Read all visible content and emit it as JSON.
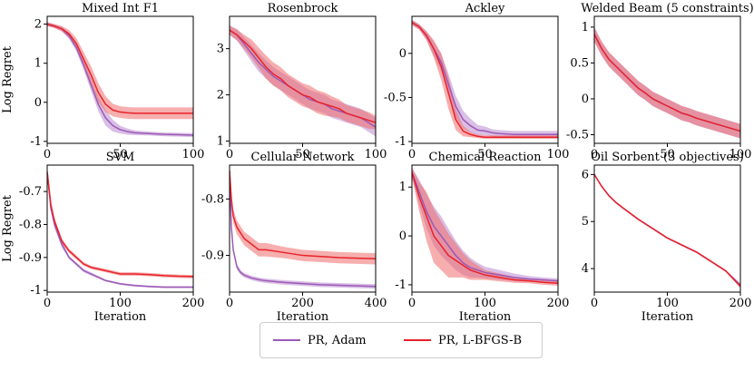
{
  "figure": {
    "legend_placement": "bottom-center"
  },
  "series_styles": [
    {
      "name": "PR, Adam",
      "color": "#9b59b6",
      "band": "#b98ad0"
    },
    {
      "name": "PR, L-BFGS-B",
      "color": "#e8222a",
      "band": "#ee6b6b"
    }
  ],
  "chart_data": [
    {
      "type": "line",
      "title": "Mixed Int F1",
      "xlabel": "",
      "ylabel": "Log Regret",
      "xlim": [
        0,
        100
      ],
      "ylim": [
        -1.05,
        2.2
      ],
      "xticks": [
        0,
        50,
        100
      ],
      "yticks": [
        -1,
        0,
        1,
        2
      ],
      "series": [
        {
          "name": "PR, Adam",
          "x": [
            0,
            5,
            10,
            15,
            20,
            25,
            30,
            35,
            40,
            45,
            50,
            55,
            60,
            70,
            80,
            90,
            100
          ],
          "y": [
            2.0,
            1.95,
            1.88,
            1.7,
            1.4,
            0.95,
            0.45,
            -0.05,
            -0.4,
            -0.6,
            -0.7,
            -0.75,
            -0.78,
            -0.8,
            -0.82,
            -0.83,
            -0.84
          ],
          "band": [
            0.05,
            0.05,
            0.06,
            0.08,
            0.1,
            0.12,
            0.15,
            0.18,
            0.2,
            0.15,
            0.1,
            0.08,
            0.06,
            0.05,
            0.05,
            0.05,
            0.05
          ]
        },
        {
          "name": "PR, L-BFGS-B",
          "x": [
            0,
            5,
            10,
            15,
            20,
            25,
            30,
            35,
            40,
            45,
            50,
            55,
            60,
            70,
            80,
            90,
            100
          ],
          "y": [
            2.0,
            1.95,
            1.88,
            1.75,
            1.5,
            1.1,
            0.7,
            0.25,
            -0.05,
            -0.2,
            -0.25,
            -0.27,
            -0.28,
            -0.28,
            -0.28,
            -0.28,
            -0.28
          ],
          "band": [
            0.05,
            0.05,
            0.07,
            0.1,
            0.14,
            0.18,
            0.22,
            0.24,
            0.2,
            0.16,
            0.15,
            0.15,
            0.15,
            0.15,
            0.15,
            0.15,
            0.15
          ]
        }
      ]
    },
    {
      "type": "line",
      "title": "Rosenbrock",
      "xlabel": "",
      "ylabel": "",
      "xlim": [
        0,
        100
      ],
      "ylim": [
        0.95,
        3.7
      ],
      "xticks": [
        0,
        50,
        100
      ],
      "yticks": [
        1,
        2,
        3
      ],
      "series": [
        {
          "name": "PR, Adam",
          "x": [
            0,
            5,
            10,
            15,
            20,
            25,
            30,
            35,
            40,
            45,
            50,
            55,
            60,
            65,
            70,
            75,
            80,
            85,
            90,
            95,
            100
          ],
          "y": [
            3.4,
            3.3,
            3.1,
            2.9,
            2.7,
            2.55,
            2.4,
            2.3,
            2.2,
            2.1,
            2.0,
            1.9,
            1.85,
            1.8,
            1.7,
            1.65,
            1.6,
            1.55,
            1.5,
            1.4,
            1.3
          ],
          "band": [
            0.1,
            0.12,
            0.15,
            0.18,
            0.2,
            0.2,
            0.2,
            0.2,
            0.2,
            0.2,
            0.2,
            0.2,
            0.2,
            0.2,
            0.2,
            0.2,
            0.2,
            0.2,
            0.2,
            0.2,
            0.2
          ]
        },
        {
          "name": "PR, L-BFGS-B",
          "x": [
            0,
            5,
            10,
            15,
            20,
            25,
            30,
            35,
            40,
            45,
            50,
            55,
            60,
            65,
            70,
            75,
            80,
            85,
            90,
            95,
            100
          ],
          "y": [
            3.4,
            3.3,
            3.15,
            3.0,
            2.8,
            2.6,
            2.45,
            2.35,
            2.2,
            2.1,
            2.0,
            1.95,
            1.85,
            1.8,
            1.75,
            1.7,
            1.6,
            1.55,
            1.5,
            1.45,
            1.4
          ],
          "band": [
            0.1,
            0.12,
            0.15,
            0.2,
            0.22,
            0.25,
            0.25,
            0.25,
            0.25,
            0.25,
            0.25,
            0.25,
            0.25,
            0.25,
            0.22,
            0.2,
            0.18,
            0.18,
            0.18,
            0.18,
            0.15
          ]
        }
      ]
    },
    {
      "type": "line",
      "title": "Ackley",
      "xlabel": "",
      "ylabel": "",
      "xlim": [
        0,
        100
      ],
      "ylim": [
        -1.02,
        0.42
      ],
      "xticks": [
        0,
        50,
        100
      ],
      "yticks": [
        -1.0,
        -0.5,
        0.0
      ],
      "series": [
        {
          "name": "PR, Adam",
          "x": [
            0,
            5,
            10,
            15,
            20,
            25,
            30,
            35,
            40,
            45,
            50,
            55,
            60,
            70,
            80,
            90,
            100
          ],
          "y": [
            0.35,
            0.3,
            0.2,
            0.05,
            -0.1,
            -0.35,
            -0.6,
            -0.75,
            -0.82,
            -0.87,
            -0.88,
            -0.9,
            -0.91,
            -0.92,
            -0.92,
            -0.92,
            -0.92
          ],
          "band": [
            0.03,
            0.03,
            0.05,
            0.08,
            0.1,
            0.12,
            0.12,
            0.1,
            0.08,
            0.06,
            0.05,
            0.04,
            0.04,
            0.04,
            0.04,
            0.04,
            0.04
          ]
        },
        {
          "name": "PR, L-BFGS-B",
          "x": [
            0,
            5,
            10,
            15,
            20,
            25,
            30,
            35,
            40,
            45,
            50,
            55,
            60,
            70,
            80,
            90,
            100
          ],
          "y": [
            0.35,
            0.3,
            0.2,
            0.05,
            -0.15,
            -0.45,
            -0.75,
            -0.88,
            -0.92,
            -0.94,
            -0.95,
            -0.95,
            -0.95,
            -0.95,
            -0.95,
            -0.95,
            -0.95
          ],
          "band": [
            0.03,
            0.03,
            0.05,
            0.1,
            0.15,
            0.18,
            0.12,
            0.06,
            0.03,
            0.02,
            0.02,
            0.02,
            0.02,
            0.02,
            0.02,
            0.02,
            0.02
          ]
        }
      ]
    },
    {
      "type": "line",
      "title": "Welded Beam (5 constraints)",
      "xlabel": "",
      "ylabel": "",
      "xlim": [
        0,
        100
      ],
      "ylim": [
        -0.62,
        1.15
      ],
      "xticks": [
        0,
        50,
        100
      ],
      "yticks": [
        -0.5,
        0.0,
        0.5,
        1.0
      ],
      "series": [
        {
          "name": "PR, Adam",
          "x": [
            0,
            5,
            10,
            15,
            20,
            25,
            30,
            35,
            40,
            45,
            50,
            55,
            60,
            65,
            70,
            75,
            80,
            85,
            90,
            95,
            100
          ],
          "y": [
            0.9,
            0.7,
            0.55,
            0.45,
            0.35,
            0.25,
            0.15,
            0.08,
            0.0,
            -0.05,
            -0.1,
            -0.15,
            -0.2,
            -0.23,
            -0.27,
            -0.3,
            -0.33,
            -0.36,
            -0.39,
            -0.42,
            -0.45
          ],
          "band": [
            0.1,
            0.1,
            0.1,
            0.1,
            0.1,
            0.1,
            0.1,
            0.1,
            0.1,
            0.1,
            0.1,
            0.1,
            0.1,
            0.1,
            0.1,
            0.1,
            0.1,
            0.1,
            0.1,
            0.1,
            0.1
          ]
        },
        {
          "name": "PR, L-BFGS-B",
          "x": [
            0,
            5,
            10,
            15,
            20,
            25,
            30,
            35,
            40,
            45,
            50,
            55,
            60,
            65,
            70,
            75,
            80,
            85,
            90,
            95,
            100
          ],
          "y": [
            0.9,
            0.7,
            0.55,
            0.45,
            0.35,
            0.25,
            0.15,
            0.08,
            0.0,
            -0.05,
            -0.1,
            -0.15,
            -0.2,
            -0.23,
            -0.27,
            -0.3,
            -0.33,
            -0.36,
            -0.39,
            -0.42,
            -0.45
          ],
          "band": [
            0.1,
            0.1,
            0.1,
            0.1,
            0.1,
            0.1,
            0.1,
            0.1,
            0.1,
            0.1,
            0.1,
            0.1,
            0.1,
            0.1,
            0.1,
            0.1,
            0.1,
            0.1,
            0.1,
            0.1,
            0.1
          ]
        }
      ]
    },
    {
      "type": "line",
      "title": "SVM",
      "xlabel": "Iteration",
      "ylabel": "Log Regret",
      "xlim": [
        0,
        200
      ],
      "ylim": [
        -1.005,
        -0.62
      ],
      "xticks": [
        0,
        100,
        200
      ],
      "yticks": [
        -1.0,
        -0.9,
        -0.8,
        -0.7
      ],
      "series": [
        {
          "name": "PR, Adam",
          "x": [
            0,
            5,
            10,
            20,
            30,
            40,
            50,
            60,
            80,
            100,
            120,
            140,
            160,
            180,
            200
          ],
          "y": [
            -0.64,
            -0.75,
            -0.8,
            -0.86,
            -0.9,
            -0.92,
            -0.94,
            -0.95,
            -0.97,
            -0.98,
            -0.985,
            -0.988,
            -0.99,
            -0.99,
            -0.99
          ],
          "band": [
            0.01,
            0.01,
            0.01,
            0.01,
            0.005,
            0.005,
            0.005,
            0.005,
            0.003,
            0.003,
            0.003,
            0.003,
            0.003,
            0.003,
            0.003
          ]
        },
        {
          "name": "PR, L-BFGS-B",
          "x": [
            0,
            5,
            10,
            20,
            30,
            40,
            50,
            60,
            80,
            100,
            120,
            140,
            160,
            180,
            200
          ],
          "y": [
            -0.64,
            -0.74,
            -0.79,
            -0.85,
            -0.88,
            -0.9,
            -0.92,
            -0.93,
            -0.94,
            -0.95,
            -0.95,
            -0.952,
            -0.955,
            -0.957,
            -0.958
          ],
          "band": [
            0.01,
            0.01,
            0.01,
            0.008,
            0.006,
            0.006,
            0.005,
            0.005,
            0.005,
            0.005,
            0.005,
            0.005,
            0.005,
            0.005,
            0.005
          ]
        }
      ]
    },
    {
      "type": "line",
      "title": "Cellular Network",
      "xlabel": "Iteration",
      "ylabel": "",
      "xlim": [
        0,
        400
      ],
      "ylim": [
        -0.965,
        -0.74
      ],
      "xticks": [
        0,
        200,
        400
      ],
      "yticks": [
        -0.9,
        -0.8
      ],
      "series": [
        {
          "name": "PR, Adam",
          "x": [
            0,
            5,
            10,
            20,
            30,
            40,
            60,
            80,
            100,
            150,
            200,
            250,
            300,
            350,
            400
          ],
          "y": [
            -0.75,
            -0.85,
            -0.89,
            -0.92,
            -0.93,
            -0.935,
            -0.94,
            -0.943,
            -0.945,
            -0.948,
            -0.95,
            -0.952,
            -0.953,
            -0.954,
            -0.955
          ],
          "band": [
            0.005,
            0.005,
            0.005,
            0.005,
            0.004,
            0.004,
            0.004,
            0.004,
            0.004,
            0.004,
            0.004,
            0.004,
            0.004,
            0.004,
            0.004
          ]
        },
        {
          "name": "PR, L-BFGS-B",
          "x": [
            0,
            5,
            10,
            20,
            30,
            40,
            60,
            80,
            100,
            150,
            200,
            250,
            300,
            350,
            400
          ],
          "y": [
            -0.75,
            -0.8,
            -0.83,
            -0.85,
            -0.86,
            -0.87,
            -0.88,
            -0.89,
            -0.89,
            -0.895,
            -0.9,
            -0.902,
            -0.904,
            -0.905,
            -0.906
          ],
          "band": [
            0.01,
            0.012,
            0.012,
            0.012,
            0.012,
            0.012,
            0.012,
            0.012,
            0.012,
            0.01,
            0.01,
            0.01,
            0.01,
            0.01,
            0.01
          ]
        }
      ]
    },
    {
      "type": "line",
      "title": "Chemical Reaction",
      "xlabel": "Iteration",
      "ylabel": "",
      "xlim": [
        0,
        200
      ],
      "ylim": [
        -1.15,
        1.45
      ],
      "xticks": [
        0,
        100,
        200
      ],
      "yticks": [
        -1,
        0,
        1
      ],
      "series": [
        {
          "name": "PR, Adam",
          "x": [
            0,
            10,
            20,
            30,
            40,
            50,
            60,
            70,
            80,
            90,
            100,
            120,
            140,
            160,
            180,
            200
          ],
          "y": [
            1.3,
            0.9,
            0.5,
            0.2,
            0.0,
            -0.2,
            -0.4,
            -0.55,
            -0.65,
            -0.7,
            -0.75,
            -0.8,
            -0.85,
            -0.88,
            -0.9,
            -0.92
          ],
          "band": [
            0.1,
            0.25,
            0.35,
            0.4,
            0.4,
            0.35,
            0.3,
            0.25,
            0.2,
            0.15,
            0.12,
            0.1,
            0.08,
            0.06,
            0.05,
            0.05
          ]
        },
        {
          "name": "PR, L-BFGS-B",
          "x": [
            0,
            10,
            20,
            30,
            40,
            50,
            60,
            70,
            80,
            90,
            100,
            120,
            140,
            160,
            180,
            200
          ],
          "y": [
            1.3,
            0.8,
            0.4,
            0.0,
            -0.2,
            -0.4,
            -0.5,
            -0.6,
            -0.7,
            -0.75,
            -0.8,
            -0.85,
            -0.9,
            -0.92,
            -0.95,
            -0.97
          ],
          "band": [
            0.1,
            0.3,
            0.5,
            0.55,
            0.5,
            0.45,
            0.35,
            0.25,
            0.2,
            0.15,
            0.1,
            0.08,
            0.06,
            0.05,
            0.05,
            0.05
          ]
        }
      ]
    },
    {
      "type": "line",
      "title": "Oil Sorbent (3 objectives)",
      "xlabel": "Iteration",
      "ylabel": "",
      "xlim": [
        0,
        200
      ],
      "ylim": [
        3.5,
        6.2
      ],
      "xticks": [
        0,
        100,
        200
      ],
      "yticks": [
        4,
        5,
        6
      ],
      "series": [
        {
          "name": "PR, Adam",
          "x": [
            0,
            10,
            20,
            30,
            40,
            60,
            80,
            100,
            120,
            140,
            160,
            180,
            200
          ],
          "y": [
            6.0,
            5.75,
            5.55,
            5.4,
            5.28,
            5.05,
            4.85,
            4.65,
            4.5,
            4.35,
            4.15,
            3.95,
            3.65
          ],
          "band": [
            0.02,
            0.02,
            0.02,
            0.02,
            0.02,
            0.02,
            0.02,
            0.02,
            0.02,
            0.02,
            0.02,
            0.02,
            0.03
          ]
        },
        {
          "name": "PR, L-BFGS-B",
          "x": [
            0,
            10,
            20,
            30,
            40,
            60,
            80,
            100,
            120,
            140,
            160,
            180,
            200
          ],
          "y": [
            6.0,
            5.75,
            5.55,
            5.4,
            5.28,
            5.05,
            4.85,
            4.65,
            4.5,
            4.35,
            4.15,
            3.95,
            3.62
          ],
          "band": [
            0.02,
            0.02,
            0.02,
            0.02,
            0.02,
            0.02,
            0.02,
            0.02,
            0.02,
            0.02,
            0.02,
            0.02,
            0.03
          ]
        }
      ]
    }
  ]
}
